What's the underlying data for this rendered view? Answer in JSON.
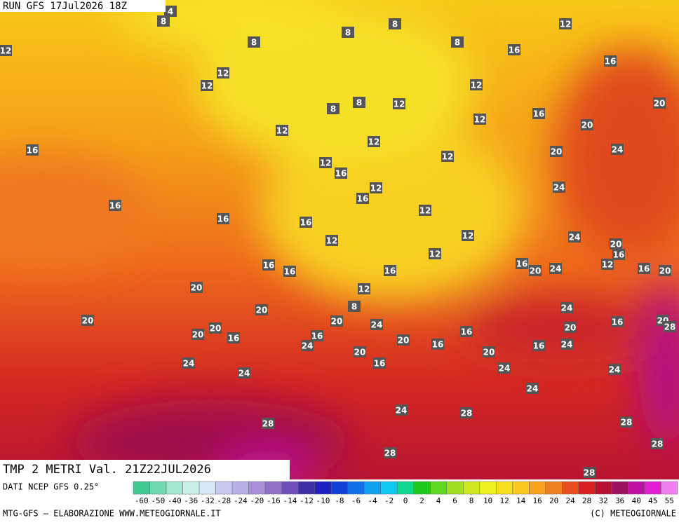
{
  "header": {
    "run": "RUN GFS 17Jul2026 18Z"
  },
  "title": "TMP 2 METRI Val. 21Z22JUL2026",
  "map": {
    "contour_labels": [
      8,
      4,
      8,
      8,
      8,
      12,
      12,
      8,
      12,
      12,
      16,
      16,
      12,
      12,
      8,
      8,
      12,
      16,
      20,
      12,
      20,
      16,
      12,
      12,
      20,
      24,
      12,
      16,
      12,
      24,
      16,
      16,
      12,
      16,
      16,
      12,
      12,
      24,
      20,
      16,
      12,
      16,
      16,
      16,
      16,
      20,
      24,
      12,
      16,
      20,
      20,
      12,
      20,
      8,
      24,
      20,
      20,
      24,
      20,
      16,
      20,
      28,
      20,
      20,
      16,
      16,
      24,
      16,
      20,
      16,
      20,
      16,
      24,
      20,
      24,
      16,
      24,
      24,
      24,
      24,
      24,
      28,
      28,
      28,
      28,
      28,
      28
    ]
  },
  "colorbar": {
    "ticks": [
      -60,
      -50,
      -40,
      -36,
      -32,
      -28,
      -24,
      -20,
      -16,
      -14,
      -12,
      -10,
      -8,
      -6,
      -4,
      -2,
      0,
      2,
      4,
      6,
      8,
      10,
      12,
      14,
      16,
      20,
      24,
      28,
      32,
      36,
      40,
      45,
      55
    ],
    "colors": [
      "#40c890",
      "#70d8b0",
      "#a0e8d0",
      "#c8f0e8",
      "#d8e8f8",
      "#c8c8f0",
      "#b8b0e8",
      "#a890d8",
      "#9070c8",
      "#7050b8",
      "#4030a8",
      "#2020c0",
      "#1040d8",
      "#1070e8",
      "#10a0f0",
      "#10c8f0",
      "#10d890",
      "#20c820",
      "#60d820",
      "#a0e020",
      "#d0e820",
      "#f0f020",
      "#f8e020",
      "#f8c820",
      "#f8a020",
      "#f08020",
      "#e85020",
      "#d82020",
      "#b81030",
      "#a01060",
      "#c010a0",
      "#e020d0",
      "#f080f0"
    ]
  },
  "footer": {
    "source": "DATI NCEP GFS 0.25°",
    "credit": "MTG-GFS — ELABORAZIONE WWW.METEOGIORNALE.IT",
    "copyright": "(C) METEOGIORNALE"
  }
}
